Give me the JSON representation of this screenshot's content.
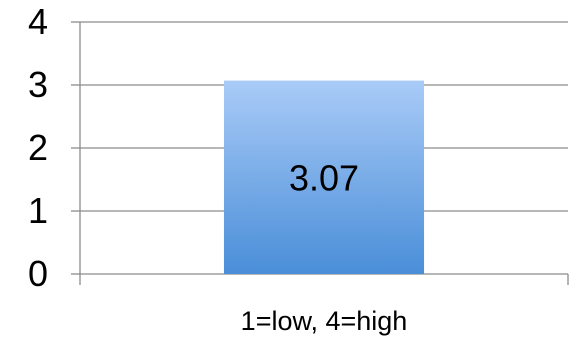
{
  "chart_data": {
    "type": "bar",
    "categories": [
      "1=low, 4=high"
    ],
    "values": [
      3.07
    ],
    "data_labels": [
      "3.07"
    ],
    "ylim": [
      0,
      4
    ],
    "yticks": [
      0,
      1,
      2,
      3,
      4
    ],
    "grid": true,
    "legend": "none",
    "colors": {
      "bar_top": "#a9cbf7",
      "bar_bottom": "#4a8ed8",
      "grid": "#8c8c8c",
      "axis": "#8c8c8c"
    }
  }
}
